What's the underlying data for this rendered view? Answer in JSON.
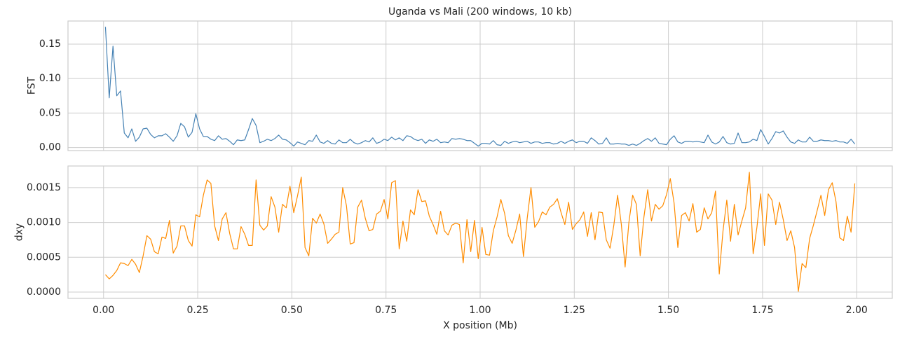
{
  "chart_data": [
    {
      "type": "line",
      "title": "Uganda vs Mali  (200 windows, 10 kb)",
      "ylabel": "FST",
      "color": "#4682b4",
      "grid": true,
      "x": [
        0.005,
        0.015,
        0.025,
        0.035,
        0.045,
        0.055,
        0.065,
        0.075,
        0.085,
        0.095,
        0.105,
        0.115,
        0.125,
        0.135,
        0.145,
        0.155,
        0.165,
        0.175,
        0.185,
        0.195,
        0.205,
        0.215,
        0.225,
        0.235,
        0.245,
        0.255,
        0.265,
        0.275,
        0.285,
        0.295,
        0.305,
        0.315,
        0.325,
        0.335,
        0.345,
        0.355,
        0.365,
        0.375,
        0.385,
        0.395,
        0.405,
        0.415,
        0.425,
        0.435,
        0.445,
        0.455,
        0.465,
        0.475,
        0.485,
        0.495,
        0.505,
        0.515,
        0.525,
        0.535,
        0.545,
        0.555,
        0.565,
        0.575,
        0.585,
        0.595,
        0.605,
        0.615,
        0.625,
        0.635,
        0.645,
        0.655,
        0.665,
        0.675,
        0.685,
        0.695,
        0.705,
        0.715,
        0.725,
        0.735,
        0.745,
        0.755,
        0.765,
        0.775,
        0.785,
        0.795,
        0.805,
        0.815,
        0.825,
        0.835,
        0.845,
        0.855,
        0.865,
        0.875,
        0.885,
        0.895,
        0.905,
        0.915,
        0.925,
        0.935,
        0.945,
        0.955,
        0.965,
        0.975,
        0.985,
        0.995,
        1.005,
        1.015,
        1.025,
        1.035,
        1.045,
        1.055,
        1.065,
        1.075,
        1.085,
        1.095,
        1.105,
        1.115,
        1.125,
        1.135,
        1.145,
        1.155,
        1.165,
        1.175,
        1.185,
        1.195,
        1.205,
        1.215,
        1.225,
        1.235,
        1.245,
        1.255,
        1.265,
        1.275,
        1.285,
        1.295,
        1.305,
        1.315,
        1.325,
        1.335,
        1.345,
        1.355,
        1.365,
        1.375,
        1.385,
        1.395,
        1.405,
        1.415,
        1.425,
        1.435,
        1.445,
        1.455,
        1.465,
        1.475,
        1.485,
        1.495,
        1.505,
        1.515,
        1.525,
        1.535,
        1.545,
        1.555,
        1.565,
        1.575,
        1.585,
        1.595,
        1.605,
        1.615,
        1.625,
        1.635,
        1.645,
        1.655,
        1.665,
        1.675,
        1.685,
        1.695,
        1.705,
        1.715,
        1.725,
        1.735,
        1.745,
        1.755,
        1.765,
        1.775,
        1.785,
        1.795,
        1.805,
        1.815,
        1.825,
        1.835,
        1.845,
        1.855,
        1.865,
        1.875,
        1.885,
        1.895,
        1.905,
        1.915,
        1.925,
        1.935,
        1.945,
        1.955,
        1.965,
        1.975,
        1.985,
        1.995
      ],
      "values": [
        0.175,
        0.072,
        0.147,
        0.075,
        0.082,
        0.021,
        0.014,
        0.027,
        0.009,
        0.015,
        0.027,
        0.028,
        0.019,
        0.014,
        0.017,
        0.017,
        0.02,
        0.015,
        0.009,
        0.017,
        0.035,
        0.03,
        0.015,
        0.022,
        0.049,
        0.027,
        0.016,
        0.016,
        0.012,
        0.01,
        0.017,
        0.012,
        0.013,
        0.009,
        0.004,
        0.011,
        0.01,
        0.011,
        0.026,
        0.042,
        0.032,
        0.007,
        0.009,
        0.012,
        0.01,
        0.013,
        0.018,
        0.012,
        0.011,
        0.007,
        0.002,
        0.008,
        0.006,
        0.004,
        0.01,
        0.009,
        0.018,
        0.008,
        0.006,
        0.01,
        0.006,
        0.005,
        0.011,
        0.007,
        0.007,
        0.012,
        0.007,
        0.005,
        0.007,
        0.01,
        0.008,
        0.014,
        0.006,
        0.008,
        0.012,
        0.01,
        0.015,
        0.011,
        0.014,
        0.01,
        0.017,
        0.016,
        0.012,
        0.01,
        0.012,
        0.006,
        0.011,
        0.009,
        0.012,
        0.007,
        0.008,
        0.007,
        0.013,
        0.012,
        0.013,
        0.012,
        0.01,
        0.01,
        0.006,
        0.002,
        0.006,
        0.006,
        0.005,
        0.01,
        0.004,
        0.003,
        0.009,
        0.006,
        0.008,
        0.009,
        0.007,
        0.008,
        0.009,
        0.006,
        0.008,
        0.008,
        0.006,
        0.007,
        0.007,
        0.005,
        0.006,
        0.009,
        0.006,
        0.009,
        0.011,
        0.007,
        0.009,
        0.009,
        0.006,
        0.014,
        0.01,
        0.005,
        0.006,
        0.014,
        0.005,
        0.005,
        0.006,
        0.005,
        0.005,
        0.003,
        0.005,
        0.003,
        0.006,
        0.01,
        0.013,
        0.009,
        0.014,
        0.006,
        0.005,
        0.004,
        0.012,
        0.017,
        0.008,
        0.006,
        0.009,
        0.009,
        0.008,
        0.009,
        0.008,
        0.007,
        0.018,
        0.008,
        0.005,
        0.008,
        0.016,
        0.007,
        0.005,
        0.006,
        0.021,
        0.007,
        0.007,
        0.008,
        0.012,
        0.01,
        0.026,
        0.016,
        0.005,
        0.013,
        0.023,
        0.021,
        0.024,
        0.015,
        0.008,
        0.006,
        0.011,
        0.008,
        0.008,
        0.015,
        0.009,
        0.009,
        0.011,
        0.01,
        0.01,
        0.009,
        0.01,
        0.008,
        0.008,
        0.006,
        0.012,
        0.005
      ],
      "xlim": [
        -0.0945,
        2.0945
      ],
      "xticks": [
        0,
        0.25,
        0.5,
        0.75,
        1,
        1.25,
        1.5,
        1.75,
        2
      ],
      "ylim": [
        -0.0045,
        0.1835
      ],
      "yticks": [
        {
          "value": 0,
          "label": "0.00"
        },
        {
          "value": 0.05,
          "label": "0.05"
        },
        {
          "value": 0.1,
          "label": "0.10"
        },
        {
          "value": 0.15,
          "label": "0.15"
        }
      ]
    },
    {
      "type": "line",
      "ylabel": "dxy",
      "xlabel": "X position (Mb)",
      "color": "#ff8c00",
      "grid": true,
      "x": [
        0.005,
        0.015,
        0.025,
        0.035,
        0.045,
        0.055,
        0.065,
        0.075,
        0.085,
        0.095,
        0.105,
        0.115,
        0.125,
        0.135,
        0.145,
        0.155,
        0.165,
        0.175,
        0.185,
        0.195,
        0.205,
        0.215,
        0.225,
        0.235,
        0.245,
        0.255,
        0.265,
        0.275,
        0.285,
        0.295,
        0.305,
        0.315,
        0.325,
        0.335,
        0.345,
        0.355,
        0.365,
        0.375,
        0.385,
        0.395,
        0.405,
        0.415,
        0.425,
        0.435,
        0.445,
        0.455,
        0.465,
        0.475,
        0.485,
        0.495,
        0.505,
        0.515,
        0.525,
        0.535,
        0.545,
        0.555,
        0.565,
        0.575,
        0.585,
        0.595,
        0.605,
        0.615,
        0.625,
        0.635,
        0.645,
        0.655,
        0.665,
        0.675,
        0.685,
        0.695,
        0.705,
        0.715,
        0.725,
        0.735,
        0.745,
        0.755,
        0.765,
        0.775,
        0.785,
        0.795,
        0.805,
        0.815,
        0.825,
        0.835,
        0.845,
        0.855,
        0.865,
        0.875,
        0.885,
        0.895,
        0.905,
        0.915,
        0.925,
        0.935,
        0.945,
        0.955,
        0.965,
        0.975,
        0.985,
        0.995,
        1.005,
        1.015,
        1.025,
        1.035,
        1.045,
        1.055,
        1.065,
        1.075,
        1.085,
        1.095,
        1.105,
        1.115,
        1.125,
        1.135,
        1.145,
        1.155,
        1.165,
        1.175,
        1.185,
        1.195,
        1.205,
        1.215,
        1.225,
        1.235,
        1.245,
        1.255,
        1.265,
        1.275,
        1.285,
        1.295,
        1.305,
        1.315,
        1.325,
        1.335,
        1.345,
        1.355,
        1.365,
        1.375,
        1.385,
        1.395,
        1.405,
        1.415,
        1.425,
        1.435,
        1.445,
        1.455,
        1.465,
        1.475,
        1.485,
        1.495,
        1.505,
        1.515,
        1.525,
        1.535,
        1.545,
        1.555,
        1.565,
        1.575,
        1.585,
        1.595,
        1.605,
        1.615,
        1.625,
        1.635,
        1.645,
        1.655,
        1.665,
        1.675,
        1.685,
        1.695,
        1.705,
        1.715,
        1.725,
        1.735,
        1.745,
        1.755,
        1.765,
        1.775,
        1.785,
        1.795,
        1.805,
        1.815,
        1.825,
        1.835,
        1.845,
        1.855,
        1.865,
        1.875,
        1.885,
        1.895,
        1.905,
        1.915,
        1.925,
        1.935,
        1.945,
        1.955,
        1.965,
        1.975,
        1.985,
        1.995
      ],
      "values": [
        0.00025,
        0.00019,
        0.00024,
        0.00031,
        0.00042,
        0.00041,
        0.00038,
        0.00047,
        0.0004,
        0.00028,
        0.00052,
        0.00081,
        0.00076,
        0.00058,
        0.00055,
        0.00079,
        0.00077,
        0.00103,
        0.00056,
        0.00066,
        0.00095,
        0.00095,
        0.00074,
        0.00066,
        0.00111,
        0.00108,
        0.00139,
        0.00161,
        0.00156,
        0.00095,
        0.00074,
        0.00105,
        0.00114,
        0.00084,
        0.00062,
        0.00062,
        0.00094,
        0.00083,
        0.00067,
        0.00067,
        0.00161,
        0.00096,
        0.00089,
        0.00095,
        0.00137,
        0.00122,
        0.00086,
        0.00126,
        0.00121,
        0.00152,
        0.00114,
        0.00138,
        0.00165,
        0.00064,
        0.00052,
        0.00106,
        0.00099,
        0.00112,
        0.00098,
        0.0007,
        0.00076,
        0.00083,
        0.00086,
        0.0015,
        0.00124,
        0.00069,
        0.00071,
        0.00122,
        0.00132,
        0.00106,
        0.00088,
        0.0009,
        0.00112,
        0.00116,
        0.00133,
        0.00105,
        0.00157,
        0.0016,
        0.00062,
        0.00102,
        0.00073,
        0.00118,
        0.00111,
        0.00147,
        0.0013,
        0.00131,
        0.00109,
        0.00097,
        0.00083,
        0.00116,
        0.00088,
        0.00082,
        0.00096,
        0.00099,
        0.00097,
        0.00042,
        0.00104,
        0.00058,
        0.00103,
        0.00048,
        0.00093,
        0.00054,
        0.00053,
        0.00088,
        0.00108,
        0.00133,
        0.00113,
        0.00081,
        0.0007,
        0.00089,
        0.00112,
        0.00051,
        0.00106,
        0.0015,
        0.00093,
        0.00101,
        0.00115,
        0.00111,
        0.00122,
        0.00126,
        0.00134,
        0.00114,
        0.00097,
        0.00129,
        0.0009,
        0.00098,
        0.00104,
        0.00115,
        0.0008,
        0.00114,
        0.00075,
        0.00115,
        0.00114,
        0.00075,
        0.00063,
        0.00096,
        0.00139,
        0.00097,
        0.00036,
        0.001,
        0.00139,
        0.00126,
        0.00052,
        0.00108,
        0.00147,
        0.00102,
        0.00126,
        0.00119,
        0.00124,
        0.0014,
        0.00163,
        0.00128,
        0.00064,
        0.0011,
        0.00114,
        0.00102,
        0.00127,
        0.00086,
        0.0009,
        0.00121,
        0.00105,
        0.00114,
        0.00145,
        0.00026,
        0.00088,
        0.00132,
        0.00073,
        0.00126,
        0.00082,
        0.00102,
        0.00121,
        0.00172,
        0.00055,
        0.00093,
        0.00141,
        0.00067,
        0.00141,
        0.00132,
        0.00097,
        0.00129,
        0.00104,
        0.00074,
        0.00088,
        0.00064,
        1e-05,
        0.00041,
        0.00035,
        0.00077,
        0.00096,
        0.00117,
        0.00139,
        0.0011,
        0.00147,
        0.00157,
        0.0013,
        0.00078,
        0.00074,
        0.00109,
        0.00086,
        0.00156
      ],
      "xlim": [
        -0.0945,
        2.0945
      ],
      "xticks": [
        {
          "value": 0,
          "label": "0.00"
        },
        {
          "value": 0.25,
          "label": "0.25"
        },
        {
          "value": 0.5,
          "label": "0.50"
        },
        {
          "value": 0.75,
          "label": "0.75"
        },
        {
          "value": 1,
          "label": "1.00"
        },
        {
          "value": 1.25,
          "label": "1.25"
        },
        {
          "value": 1.5,
          "label": "1.50"
        },
        {
          "value": 1.75,
          "label": "1.75"
        },
        {
          "value": 2,
          "label": "2.00"
        }
      ],
      "ylim": [
        -9e-05,
        0.00181
      ],
      "yticks": [
        {
          "value": 0,
          "label": "0.0000"
        },
        {
          "value": 0.0005,
          "label": "0.0005"
        },
        {
          "value": 0.001,
          "label": "0.0010"
        },
        {
          "value": 0.0015,
          "label": "0.0015"
        }
      ]
    }
  ]
}
